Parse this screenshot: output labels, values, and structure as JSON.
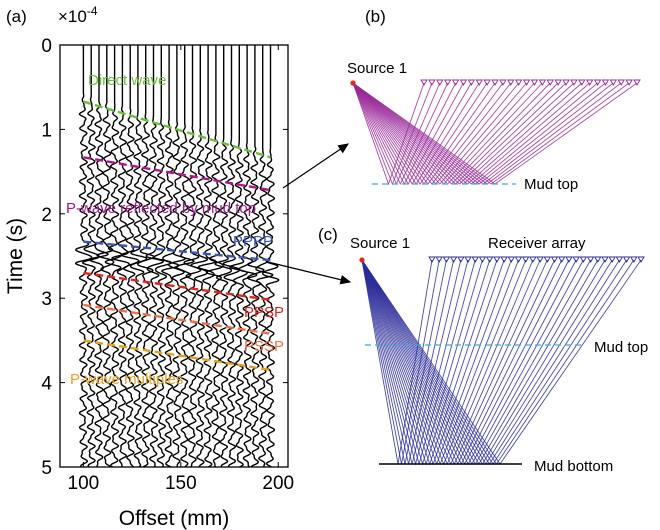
{
  "panels": {
    "a": "(a)",
    "b": "(b)",
    "c": "(c)"
  },
  "seismogram": {
    "exponent": "×10",
    "exponent_power": "-4",
    "ylabel": "Time (s)",
    "xlabel": "Offset (mm)",
    "yticks": [
      "0",
      "1",
      "2",
      "3",
      "4",
      "5"
    ],
    "xticks": [
      "100",
      "150",
      "200"
    ]
  },
  "annotations": {
    "direct_wave": "Direct wave",
    "p_reflected": "P-wave reflected by mud top",
    "pppp": "PPPP",
    "ppsp": "PPSP",
    "pssp": "PSSP",
    "multiples": "P-wave multiples"
  },
  "colors": {
    "direct_wave": "#6cbf3a",
    "p_reflected": "#b0158f",
    "pppp": "#3a56b0",
    "ppsp": "#e0261f",
    "pssp": "#f0704a",
    "multiples": "#e8a020",
    "purple_rays": "#9a2a9a",
    "blue_rays": "#2b2b9a",
    "mud_top_line": "#3fa9e0",
    "source_marker": "#e0261f"
  },
  "ray_b": {
    "source": "Source 1",
    "mud_top": "Mud top"
  },
  "ray_c": {
    "source": "Source 1",
    "receivers": "Receiver array",
    "mud_top": "Mud top",
    "mud_bottom": "Mud bottom"
  },
  "chart_data": {
    "type": "line",
    "title": "",
    "xlabel": "Offset (mm)",
    "ylabel": "Time (s)",
    "y_exponent": "x10^-4",
    "xlim": [
      88,
      205
    ],
    "ylim": [
      0,
      5
    ],
    "y_reversed": true,
    "traces_offsets": [
      100,
      104,
      108,
      112,
      116,
      120,
      124,
      128,
      132,
      136,
      140,
      144,
      148,
      152,
      156,
      160,
      164,
      168,
      172,
      176,
      180,
      184,
      188,
      192,
      196
    ],
    "series": [
      {
        "name": "Direct wave",
        "x": [
          100,
          196
        ],
        "y": [
          0.67,
          1.33
        ]
      },
      {
        "name": "P-wave reflected by mud top",
        "x": [
          100,
          196
        ],
        "y": [
          1.33,
          1.72
        ]
      },
      {
        "name": "PPPP",
        "x": [
          100,
          196
        ],
        "y": [
          2.33,
          2.55
        ]
      },
      {
        "name": "PPSP",
        "x": [
          100,
          196
        ],
        "y": [
          2.7,
          3.02
        ]
      },
      {
        "name": "PSSP",
        "x": [
          100,
          196
        ],
        "y": [
          3.08,
          3.42
        ]
      },
      {
        "name": "P-wave multiples",
        "x": [
          100,
          196
        ],
        "y": [
          3.5,
          3.85
        ]
      }
    ]
  }
}
